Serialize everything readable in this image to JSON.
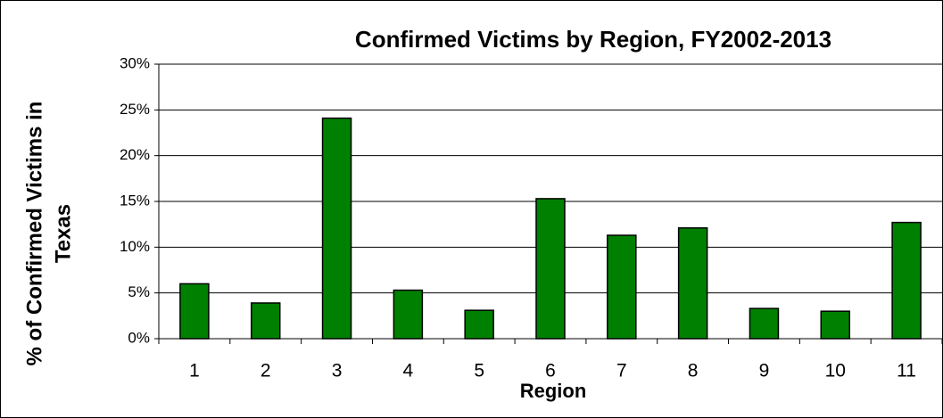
{
  "chart_data": {
    "type": "bar",
    "title": "Confirmed Victims by Region, FY2002-2013",
    "x_label": "Region",
    "y_label": [
      "% of Confirmed Victims in",
      "Texas"
    ],
    "categories": [
      "1",
      "2",
      "3",
      "4",
      "5",
      "6",
      "7",
      "8",
      "9",
      "10",
      "11"
    ],
    "values": [
      6.0,
      3.9,
      24.1,
      5.3,
      3.1,
      15.3,
      11.3,
      12.1,
      3.3,
      3.0,
      12.7
    ],
    "color": "#008000",
    "ylim": [
      0,
      30
    ],
    "yticks": [
      {
        "value": 0,
        "label": "0%"
      },
      {
        "value": 5,
        "label": "5%"
      },
      {
        "value": 10,
        "label": "10%"
      },
      {
        "value": 15,
        "label": "15%"
      },
      {
        "value": 20,
        "label": "20%"
      },
      {
        "value": 25,
        "label": "25%"
      },
      {
        "value": 30,
        "label": "30%"
      }
    ],
    "grid": true
  }
}
